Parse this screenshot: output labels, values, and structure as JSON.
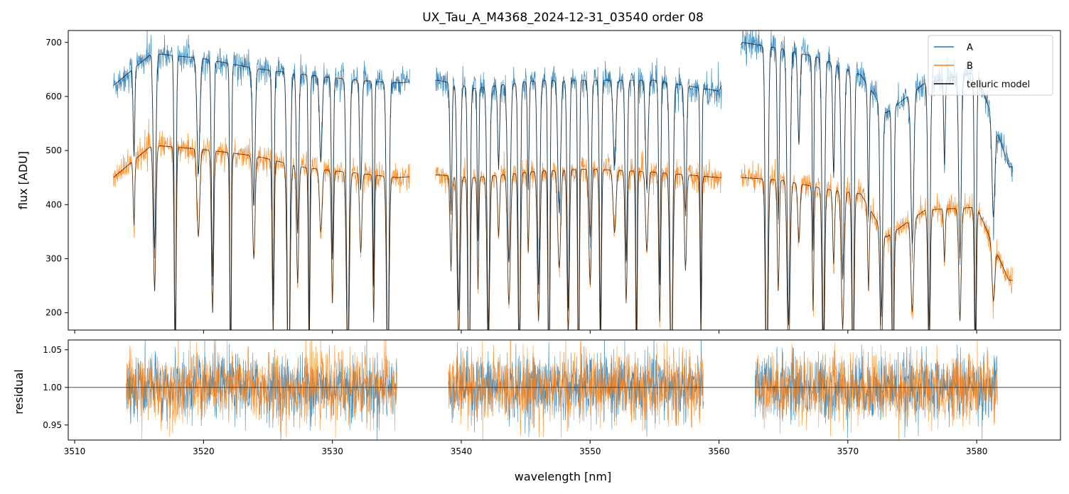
{
  "chart_data": [
    {
      "type": "line",
      "panel": "flux",
      "title": "UX_Tau_A_M4368_2024-12-31_03540  order 08",
      "xlabel": "",
      "ylabel": "flux [ADU]",
      "xlim": [
        3509.5,
        3586.5
      ],
      "ylim": [
        168,
        722
      ],
      "xticks": [
        3510,
        3520,
        3530,
        3540,
        3550,
        3560,
        3570,
        3580
      ],
      "yticks": [
        200,
        300,
        400,
        500,
        600,
        700
      ],
      "ytick_labels": [
        "200",
        "300",
        "400",
        "500",
        "600",
        "700"
      ],
      "xtick_labels_visible": false,
      "legend": {
        "placement": "top-right",
        "entries": [
          "A",
          "B",
          "telluric model"
        ]
      },
      "segments": [
        {
          "x_start": 3513.0,
          "x_end": 3536.0
        },
        {
          "x_start": 3538.0,
          "x_end": 3560.2
        },
        {
          "x_start": 3561.7,
          "x_end": 3582.8
        }
      ],
      "series": [
        {
          "name": "A",
          "color": "#1f77b4",
          "continuum_points": [
            [
              3513.0,
              620
            ],
            [
              3516,
              680
            ],
            [
              3520,
              670
            ],
            [
              3524,
              652
            ],
            [
              3528,
              640
            ],
            [
              3532,
              630
            ],
            [
              3535,
              625
            ],
            [
              3538.2,
              630
            ],
            [
              3541,
              615
            ],
            [
              3546,
              630
            ],
            [
              3550,
              630
            ],
            [
              3555,
              630
            ],
            [
              3560,
              610
            ],
            [
              3561.8,
              700
            ],
            [
              3565,
              688
            ],
            [
              3568,
              670
            ],
            [
              3571,
              640
            ],
            [
              3573,
              570
            ],
            [
              3576,
              625
            ],
            [
              3580,
              645
            ],
            [
              3582.5,
              470
            ]
          ]
        },
        {
          "name": "B",
          "color": "#ff7f0e",
          "continuum_points": [
            [
              3513.0,
              450
            ],
            [
              3516,
              510
            ],
            [
              3520,
              502
            ],
            [
              3524,
              490
            ],
            [
              3528,
              468
            ],
            [
              3532,
              458
            ],
            [
              3535,
              450
            ],
            [
              3538.2,
              455
            ],
            [
              3541,
              450
            ],
            [
              3546,
              462
            ],
            [
              3550,
              466
            ],
            [
              3555,
              460
            ],
            [
              3560,
              450
            ],
            [
              3561.8,
              450
            ],
            [
              3565,
              445
            ],
            [
              3568,
              430
            ],
            [
              3571,
              420
            ],
            [
              3573,
              340
            ],
            [
              3576,
              390
            ],
            [
              3580,
              395
            ],
            [
              3582.5,
              260
            ]
          ]
        },
        {
          "name": "telluric model",
          "color": "#000000"
        }
      ],
      "absorption_lines_nm": [
        3514.6,
        3516.2,
        3517.8,
        3519.6,
        3520.7,
        3522.1,
        3523.9,
        3525.4,
        3526.6,
        3527.3,
        3528.2,
        3529.1,
        3530.0,
        3531.2,
        3532.2,
        3533.2,
        3534.3,
        3539.2,
        3539.8,
        3540.6,
        3541.3,
        3542.1,
        3542.9,
        3543.7,
        3544.5,
        3545.2,
        3546.0,
        3546.8,
        3547.6,
        3548.3,
        3549.1,
        3550.0,
        3550.8,
        3551.9,
        3552.8,
        3553.6,
        3554.4,
        3555.4,
        3556.3,
        3557.4,
        3558.6,
        3563.7,
        3564.6,
        3565.4,
        3566.2,
        3567.3,
        3568.1,
        3568.9,
        3569.6,
        3570.4,
        3571.6,
        3572.6,
        3573.5,
        3575.0,
        3576.3,
        3577.5,
        3578.7,
        3579.9,
        3581.3
      ]
    },
    {
      "type": "line",
      "panel": "residual",
      "xlabel": "wavelength [nm]",
      "ylabel": "residual",
      "xlim": [
        3509.5,
        3586.5
      ],
      "ylim": [
        0.93,
        1.063
      ],
      "xticks": [
        3510,
        3520,
        3530,
        3540,
        3550,
        3560,
        3570,
        3580
      ],
      "xtick_labels": [
        "3510",
        "3520",
        "3530",
        "3540",
        "3550",
        "3560",
        "3570",
        "3580"
      ],
      "yticks": [
        0.95,
        1.0,
        1.05
      ],
      "ytick_labels": [
        "0.95",
        "1.00",
        "1.05"
      ],
      "reference_line": 1.0,
      "segments": [
        {
          "x_start": 3514.0,
          "x_end": 3535.0
        },
        {
          "x_start": 3539.0,
          "x_end": 3558.8
        },
        {
          "x_start": 3562.8,
          "x_end": 3581.6
        }
      ],
      "series": [
        {
          "name": "A",
          "color": "#1f77b4",
          "center": 1.0,
          "scatter_sigma": 0.022
        },
        {
          "name": "B",
          "color": "#ff7f0e",
          "center": 1.0,
          "scatter_sigma": 0.024
        }
      ]
    }
  ]
}
